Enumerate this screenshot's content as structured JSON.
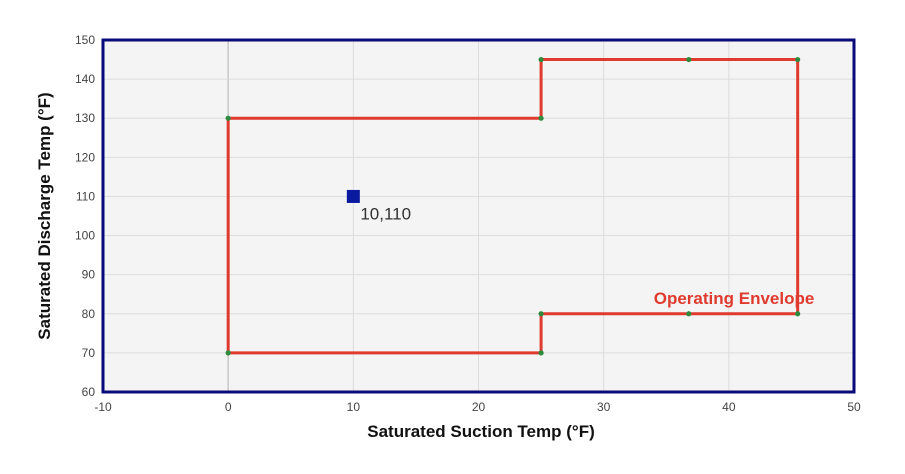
{
  "chart_data": {
    "type": "line",
    "title": "",
    "xlabel": "Saturated Suction Temp (°F)",
    "ylabel": "Saturated Discharge Temp (°F)",
    "xlim": [
      -10,
      50
    ],
    "ylim": [
      60,
      150
    ],
    "x_ticks": [
      -10,
      0,
      10,
      20,
      30,
      40,
      50
    ],
    "y_ticks": [
      60,
      70,
      80,
      90,
      100,
      110,
      120,
      130,
      140,
      150
    ],
    "x_tick_labels": [
      "-10",
      "0",
      "10",
      "20",
      "30",
      "40",
      "50"
    ],
    "y_tick_labels": [
      "60",
      "70",
      "80",
      "90",
      "100",
      "110",
      "120",
      "130",
      "140",
      "150"
    ],
    "grid": true,
    "series": [
      {
        "name": "Operating Envelope",
        "color": "#e03a2f",
        "marker_color": "#2e8b3d",
        "points": [
          {
            "x": 0,
            "y": 70
          },
          {
            "x": 0,
            "y": 130
          },
          {
            "x": 25,
            "y": 130
          },
          {
            "x": 25,
            "y": 145
          },
          {
            "x": 36.8,
            "y": 145
          },
          {
            "x": 45.5,
            "y": 145
          },
          {
            "x": 45.5,
            "y": 80
          },
          {
            "x": 36.8,
            "y": 80
          },
          {
            "x": 25,
            "y": 80
          },
          {
            "x": 25,
            "y": 70
          },
          {
            "x": 0,
            "y": 70
          }
        ]
      }
    ],
    "annotations": [
      {
        "text": "Operating Envelope",
        "x": 34,
        "y": 84,
        "color": "#e03a2f"
      }
    ],
    "operating_point": {
      "x": 10,
      "y": 110,
      "label": "10,110",
      "color": "#0a1a9e"
    },
    "colors": {
      "plot_background": "#f4f4f4",
      "plot_border": "#0a0a7a",
      "grid": "#dddddd",
      "zero_line": "#c8c8c8"
    }
  }
}
